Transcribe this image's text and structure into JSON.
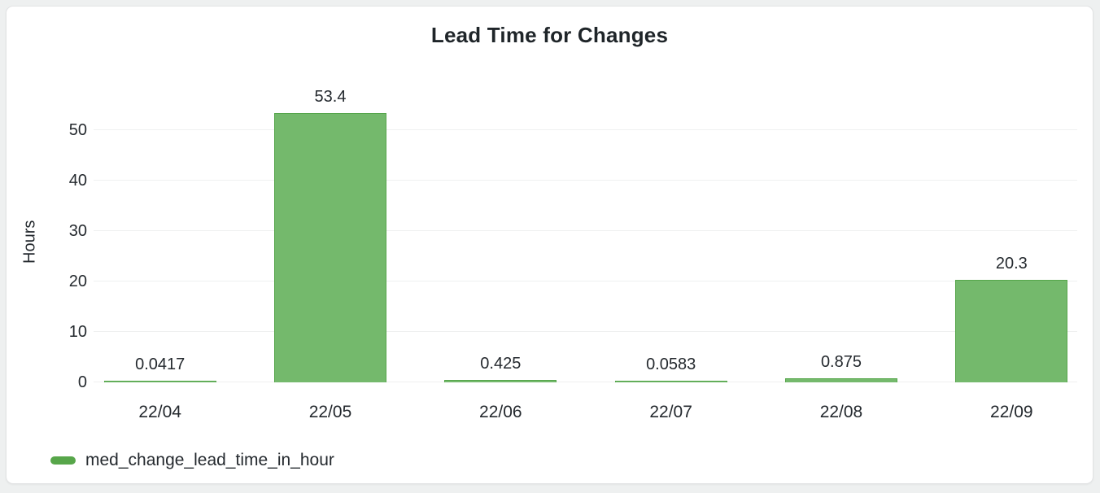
{
  "panel": {
    "title": "Lead Time for Changes"
  },
  "chart_data": {
    "type": "bar",
    "title": "Lead Time for Changes",
    "categories": [
      "22/04",
      "22/05",
      "22/06",
      "22/07",
      "22/08",
      "22/09"
    ],
    "series": [
      {
        "name": "med_change_lead_time_in_hour",
        "values": [
          0.0417,
          53.4,
          0.425,
          0.0583,
          0.875,
          20.3
        ]
      }
    ],
    "value_labels": [
      "0.0417",
      "53.4",
      "0.425",
      "0.0583",
      "0.875",
      "20.3"
    ],
    "xlabel": "",
    "ylabel": "Hours",
    "yticks": [
      0,
      10,
      20,
      30,
      40,
      50
    ],
    "ylim": [
      0,
      55.6
    ],
    "grid": true,
    "legend_position": "bottom-left",
    "bar_color": "#74b96c",
    "bar_border_color": "#56a64b",
    "legend_swatch_color": "#57a64a"
  },
  "legend": {
    "label": "med_change_lead_time_in_hour"
  }
}
